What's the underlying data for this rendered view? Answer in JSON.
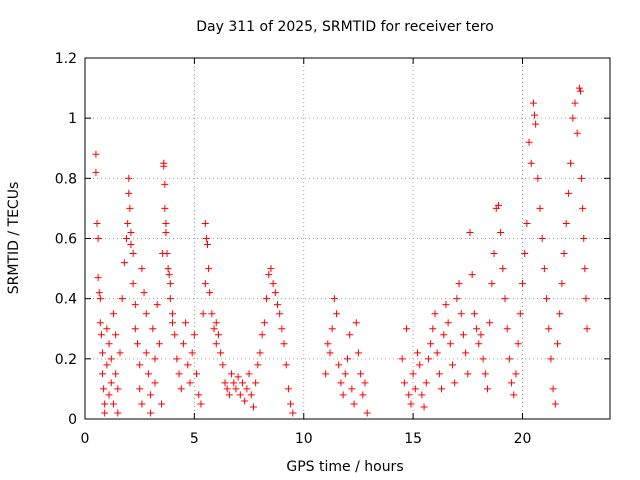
{
  "chart_data": {
    "type": "scatter",
    "title": "Day 311 of 2025, SRMTID for receiver tero",
    "xlabel": "GPS time / hours",
    "ylabel": "SRMTID / TECUs",
    "xlim": [
      0,
      24
    ],
    "ylim": [
      0,
      1.2
    ],
    "xticks": [
      0,
      5,
      10,
      15,
      20
    ],
    "yticks": [
      0,
      0.2,
      0.4,
      0.6,
      0.8,
      1,
      1.2
    ],
    "xtick_labels": [
      "0",
      "5",
      "10",
      "15",
      "20"
    ],
    "ytick_labels": [
      "0",
      "0.2",
      "0.4",
      "0.6",
      "0.8",
      "1",
      "1.2"
    ],
    "grid": true,
    "marker": "plus",
    "color": "#ff0000",
    "series": [
      {
        "name": "SRMTID",
        "points": [
          [
            0.5,
            0.88
          ],
          [
            0.5,
            0.82
          ],
          [
            0.55,
            0.65
          ],
          [
            0.6,
            0.6
          ],
          [
            0.6,
            0.47
          ],
          [
            0.65,
            0.42
          ],
          [
            0.7,
            0.4
          ],
          [
            0.7,
            0.32
          ],
          [
            0.75,
            0.28
          ],
          [
            0.8,
            0.22
          ],
          [
            0.8,
            0.15
          ],
          [
            0.85,
            0.1
          ],
          [
            0.9,
            0.05
          ],
          [
            0.9,
            0.02
          ],
          [
            1.0,
            0.3
          ],
          [
            1.0,
            0.18
          ],
          [
            1.1,
            0.25
          ],
          [
            1.1,
            0.08
          ],
          [
            1.2,
            0.2
          ],
          [
            1.2,
            0.12
          ],
          [
            1.3,
            0.35
          ],
          [
            1.3,
            0.05
          ],
          [
            1.4,
            0.28
          ],
          [
            1.4,
            0.15
          ],
          [
            1.5,
            0.1
          ],
          [
            1.5,
            0.02
          ],
          [
            1.6,
            0.22
          ],
          [
            1.7,
            0.4
          ],
          [
            1.8,
            0.52
          ],
          [
            1.9,
            0.6
          ],
          [
            1.95,
            0.65
          ],
          [
            2.0,
            0.8
          ],
          [
            2.0,
            0.75
          ],
          [
            2.05,
            0.7
          ],
          [
            2.1,
            0.62
          ],
          [
            2.1,
            0.58
          ],
          [
            2.2,
            0.55
          ],
          [
            2.2,
            0.45
          ],
          [
            2.3,
            0.38
          ],
          [
            2.3,
            0.3
          ],
          [
            2.4,
            0.25
          ],
          [
            2.5,
            0.18
          ],
          [
            2.5,
            0.1
          ],
          [
            2.6,
            0.05
          ],
          [
            2.6,
            0.5
          ],
          [
            2.7,
            0.42
          ],
          [
            2.8,
            0.35
          ],
          [
            2.8,
            0.22
          ],
          [
            2.9,
            0.15
          ],
          [
            3.0,
            0.08
          ],
          [
            3.0,
            0.02
          ],
          [
            3.1,
            0.3
          ],
          [
            3.2,
            0.2
          ],
          [
            3.2,
            0.12
          ],
          [
            3.3,
            0.38
          ],
          [
            3.4,
            0.25
          ],
          [
            3.5,
            0.05
          ],
          [
            3.55,
            0.55
          ],
          [
            3.6,
            0.85
          ],
          [
            3.6,
            0.84
          ],
          [
            3.65,
            0.78
          ],
          [
            3.65,
            0.7
          ],
          [
            3.7,
            0.65
          ],
          [
            3.7,
            0.62
          ],
          [
            3.75,
            0.55
          ],
          [
            3.8,
            0.5
          ],
          [
            3.85,
            0.48
          ],
          [
            3.9,
            0.45
          ],
          [
            3.9,
            0.4
          ],
          [
            4.0,
            0.35
          ],
          [
            4.0,
            0.32
          ],
          [
            4.1,
            0.28
          ],
          [
            4.2,
            0.2
          ],
          [
            4.3,
            0.15
          ],
          [
            4.4,
            0.1
          ],
          [
            4.5,
            0.25
          ],
          [
            4.6,
            0.32
          ],
          [
            4.7,
            0.18
          ],
          [
            4.8,
            0.12
          ],
          [
            4.9,
            0.22
          ],
          [
            5.0,
            0.28
          ],
          [
            5.1,
            0.15
          ],
          [
            5.2,
            0.08
          ],
          [
            5.3,
            0.05
          ],
          [
            5.4,
            0.35
          ],
          [
            5.5,
            0.45
          ],
          [
            5.5,
            0.65
          ],
          [
            5.55,
            0.6
          ],
          [
            5.6,
            0.58
          ],
          [
            5.65,
            0.5
          ],
          [
            5.7,
            0.42
          ],
          [
            5.8,
            0.35
          ],
          [
            5.9,
            0.3
          ],
          [
            6.0,
            0.25
          ],
          [
            6.0,
            0.32
          ],
          [
            6.1,
            0.28
          ],
          [
            6.2,
            0.22
          ],
          [
            6.3,
            0.18
          ],
          [
            6.4,
            0.12
          ],
          [
            6.5,
            0.1
          ],
          [
            6.6,
            0.08
          ],
          [
            6.7,
            0.15
          ],
          [
            6.8,
            0.12
          ],
          [
            6.9,
            0.1
          ],
          [
            7.0,
            0.14
          ],
          [
            7.1,
            0.08
          ],
          [
            7.2,
            0.12
          ],
          [
            7.3,
            0.06
          ],
          [
            7.4,
            0.1
          ],
          [
            7.5,
            0.15
          ],
          [
            7.6,
            0.08
          ],
          [
            7.7,
            0.04
          ],
          [
            7.8,
            0.12
          ],
          [
            7.9,
            0.18
          ],
          [
            8.0,
            0.22
          ],
          [
            8.1,
            0.28
          ],
          [
            8.2,
            0.32
          ],
          [
            8.3,
            0.4
          ],
          [
            8.4,
            0.48
          ],
          [
            8.5,
            0.5
          ],
          [
            8.6,
            0.45
          ],
          [
            8.7,
            0.42
          ],
          [
            8.8,
            0.38
          ],
          [
            8.9,
            0.35
          ],
          [
            9.0,
            0.3
          ],
          [
            9.1,
            0.25
          ],
          [
            9.2,
            0.18
          ],
          [
            9.3,
            0.1
          ],
          [
            9.4,
            0.05
          ],
          [
            9.5,
            0.02
          ],
          [
            11.0,
            0.15
          ],
          [
            11.1,
            0.25
          ],
          [
            11.2,
            0.22
          ],
          [
            11.3,
            0.3
          ],
          [
            11.4,
            0.4
          ],
          [
            11.5,
            0.35
          ],
          [
            11.6,
            0.18
          ],
          [
            11.7,
            0.12
          ],
          [
            11.8,
            0.08
          ],
          [
            11.9,
            0.15
          ],
          [
            12.0,
            0.2
          ],
          [
            12.1,
            0.28
          ],
          [
            12.2,
            0.1
          ],
          [
            12.3,
            0.05
          ],
          [
            12.4,
            0.32
          ],
          [
            12.5,
            0.22
          ],
          [
            12.6,
            0.15
          ],
          [
            12.7,
            0.08
          ],
          [
            12.8,
            0.12
          ],
          [
            12.9,
            0.02
          ],
          [
            14.5,
            0.2
          ],
          [
            14.6,
            0.12
          ],
          [
            14.7,
            0.3
          ],
          [
            14.8,
            0.08
          ],
          [
            14.9,
            0.05
          ],
          [
            15.0,
            0.15
          ],
          [
            15.1,
            0.1
          ],
          [
            15.2,
            0.22
          ],
          [
            15.3,
            0.18
          ],
          [
            15.4,
            0.08
          ],
          [
            15.5,
            0.04
          ],
          [
            15.6,
            0.12
          ],
          [
            15.7,
            0.2
          ],
          [
            15.8,
            0.25
          ],
          [
            15.9,
            0.3
          ],
          [
            16.0,
            0.35
          ],
          [
            16.1,
            0.22
          ],
          [
            16.2,
            0.15
          ],
          [
            16.3,
            0.1
          ],
          [
            16.4,
            0.28
          ],
          [
            16.5,
            0.38
          ],
          [
            16.6,
            0.32
          ],
          [
            16.7,
            0.25
          ],
          [
            16.8,
            0.18
          ],
          [
            16.9,
            0.12
          ],
          [
            17.0,
            0.4
          ],
          [
            17.1,
            0.45
          ],
          [
            17.2,
            0.35
          ],
          [
            17.3,
            0.28
          ],
          [
            17.4,
            0.22
          ],
          [
            17.5,
            0.15
          ],
          [
            17.6,
            0.62
          ],
          [
            17.7,
            0.48
          ],
          [
            17.8,
            0.35
          ],
          [
            17.9,
            0.3
          ],
          [
            18.0,
            0.25
          ],
          [
            18.1,
            0.28
          ],
          [
            18.2,
            0.2
          ],
          [
            18.3,
            0.15
          ],
          [
            18.4,
            0.1
          ],
          [
            18.5,
            0.32
          ],
          [
            18.6,
            0.45
          ],
          [
            18.7,
            0.55
          ],
          [
            18.8,
            0.7
          ],
          [
            18.9,
            0.71
          ],
          [
            19.0,
            0.62
          ],
          [
            19.1,
            0.5
          ],
          [
            19.2,
            0.4
          ],
          [
            19.3,
            0.3
          ],
          [
            19.4,
            0.2
          ],
          [
            19.5,
            0.12
          ],
          [
            19.6,
            0.08
          ],
          [
            19.7,
            0.15
          ],
          [
            19.8,
            0.25
          ],
          [
            19.9,
            0.35
          ],
          [
            20.0,
            0.45
          ],
          [
            20.1,
            0.55
          ],
          [
            20.2,
            0.65
          ],
          [
            20.3,
            0.92
          ],
          [
            20.4,
            0.85
          ],
          [
            20.5,
            1.05
          ],
          [
            20.55,
            1.01
          ],
          [
            20.6,
            0.98
          ],
          [
            20.7,
            0.8
          ],
          [
            20.8,
            0.7
          ],
          [
            20.9,
            0.6
          ],
          [
            21.0,
            0.5
          ],
          [
            21.1,
            0.4
          ],
          [
            21.2,
            0.3
          ],
          [
            21.3,
            0.2
          ],
          [
            21.4,
            0.1
          ],
          [
            21.5,
            0.05
          ],
          [
            21.6,
            0.25
          ],
          [
            21.7,
            0.35
          ],
          [
            21.8,
            0.45
          ],
          [
            21.9,
            0.55
          ],
          [
            22.0,
            0.65
          ],
          [
            22.1,
            0.75
          ],
          [
            22.2,
            0.85
          ],
          [
            22.3,
            1.0
          ],
          [
            22.4,
            1.05
          ],
          [
            22.5,
            0.95
          ],
          [
            22.6,
            1.1
          ],
          [
            22.65,
            1.09
          ],
          [
            22.7,
            0.8
          ],
          [
            22.75,
            0.7
          ],
          [
            22.8,
            0.6
          ],
          [
            22.85,
            0.5
          ],
          [
            22.9,
            0.4
          ],
          [
            22.95,
            0.3
          ]
        ]
      }
    ]
  }
}
